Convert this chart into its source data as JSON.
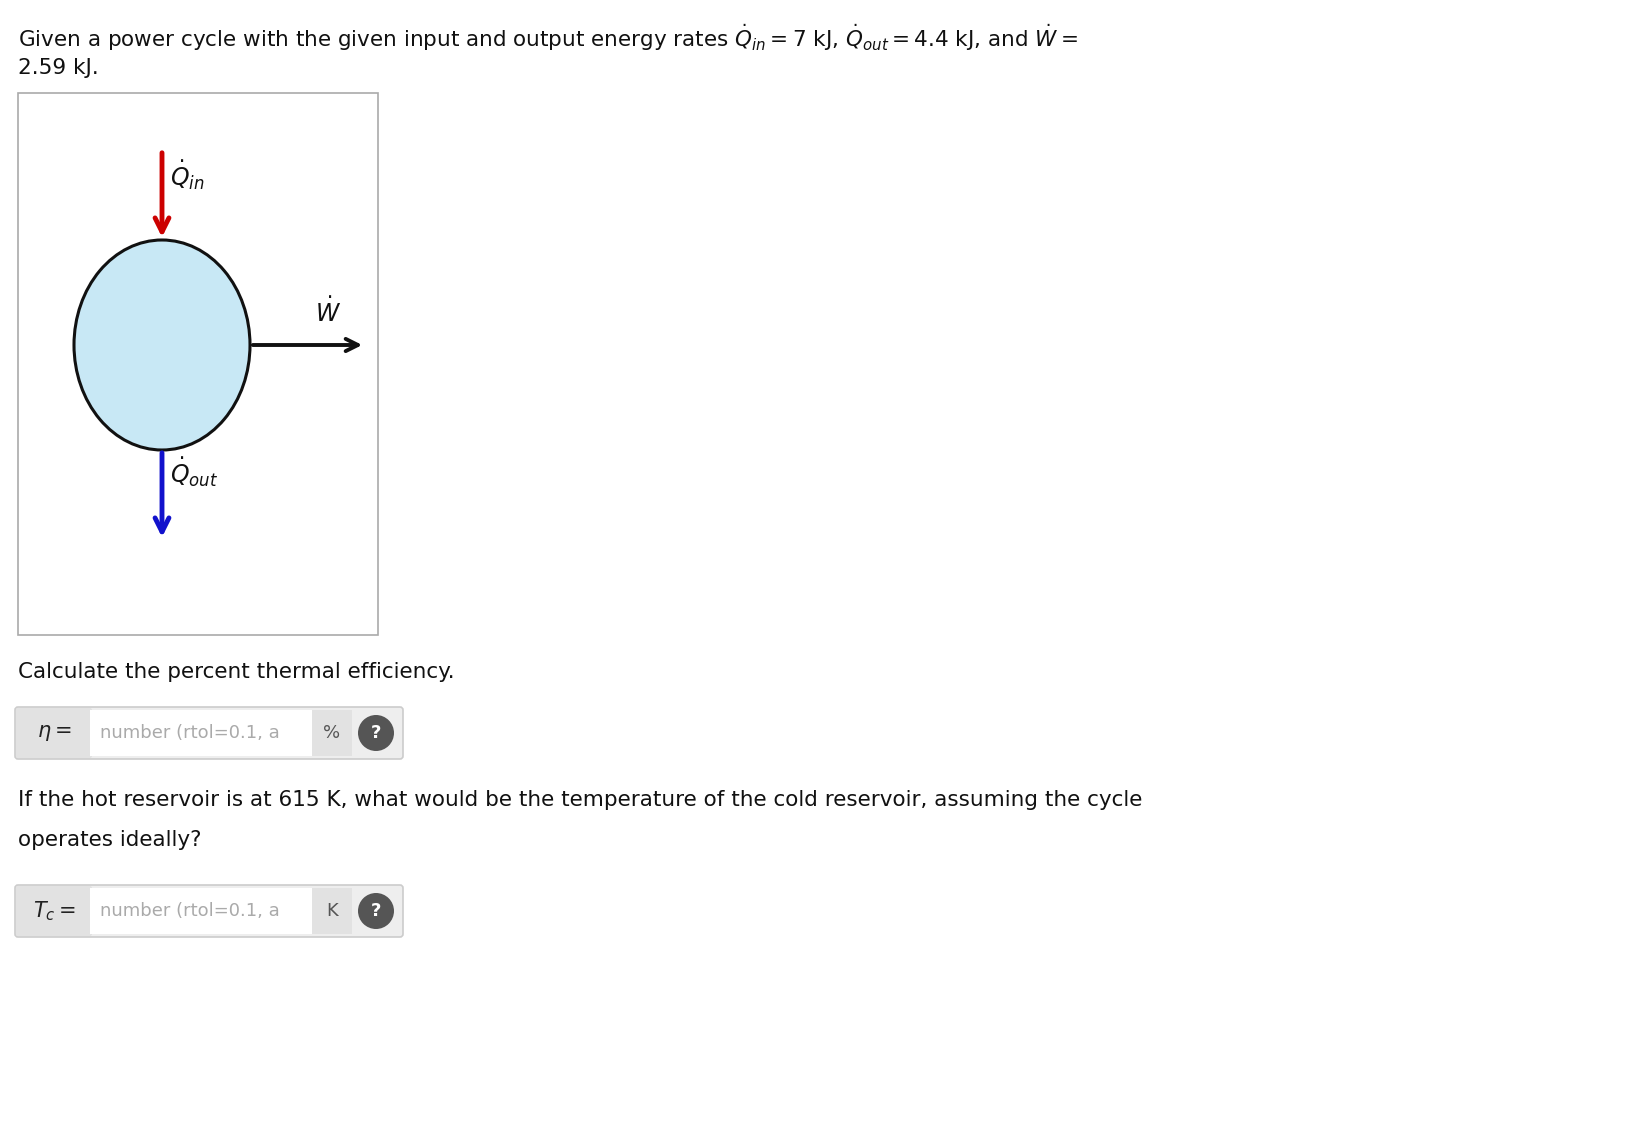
{
  "background_color": "#ffffff",
  "circle_color": "#c8e8f5",
  "circle_edge_color": "#111111",
  "arrow_q_in_color": "#cc0000",
  "arrow_q_out_color": "#1111cc",
  "arrow_w_color": "#111111",
  "calc_text": "Calculate the percent thermal efficiency.",
  "input1_label": "$\\eta =$",
  "input1_placeholder": "number (rtol=0.1, a",
  "input1_unit": "%",
  "input2_label": "$T_c =$",
  "input2_placeholder": "number (rtol=0.1, a",
  "input2_unit": "K",
  "reservoir_line1": "If the hot reservoir is at 615 K, what would be the temperature of the cold reservoir, assuming the cycle",
  "reservoir_line2": "operates ideally?",
  "font_size_main": 15,
  "box_edge_color": "#aaaaaa",
  "input_bg": "#eeeeee",
  "input_border": "#cccccc",
  "label_bg": "#e2e2e2",
  "unit_bg": "#e2e2e2",
  "placeholder_color": "#aaaaaa",
  "question_bg": "#555555"
}
